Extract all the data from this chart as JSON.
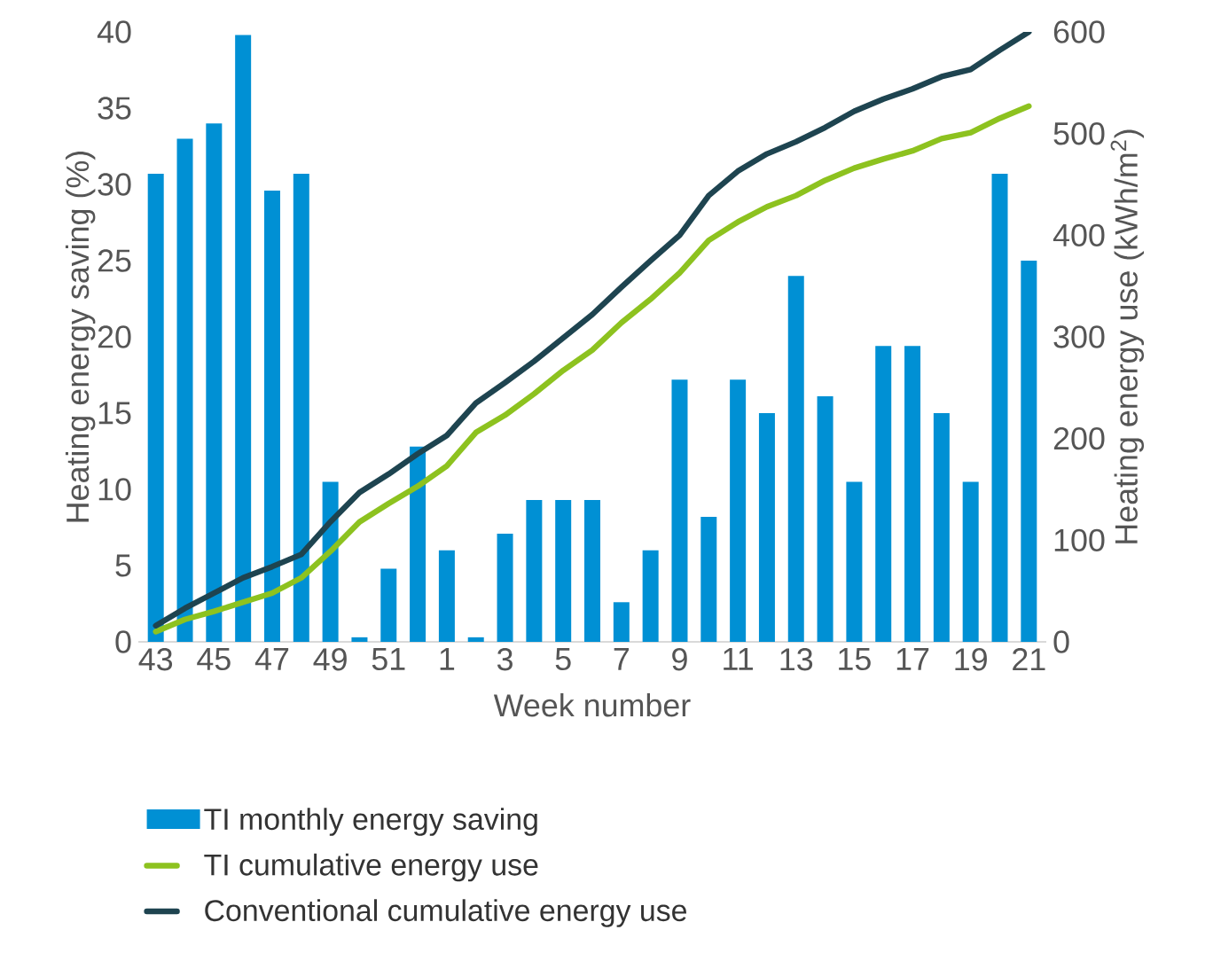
{
  "chart_data": {
    "type": "bar",
    "xlabel": "Week number",
    "ylabel": "Heating energy saving (%)",
    "y2label": "Heating energy use (kWh/m$^{2}$)",
    "categories": [
      "43",
      null,
      "45",
      null,
      "47",
      null,
      "49",
      null,
      "51",
      null,
      "1",
      null,
      "3",
      null,
      "5",
      null,
      "7",
      null,
      "9",
      null,
      "11",
      null,
      "13",
      null,
      "15",
      null,
      "17",
      null,
      "19",
      null,
      "21"
    ],
    "ylim": [
      0,
      40
    ],
    "yticks": [
      0,
      5,
      10,
      15,
      20,
      25,
      30,
      35,
      40
    ],
    "y2lim": [
      0,
      600
    ],
    "y2ticks": [
      0,
      100,
      200,
      300,
      400,
      500,
      600
    ],
    "legend": "bottom",
    "grid": false,
    "series": [
      {
        "name": "TI monthly energy saving",
        "color": "#0090d4",
        "values": [
          30.7,
          33,
          34,
          39.8,
          29.6,
          30.7,
          10.5,
          0.3,
          4.8,
          12.8,
          6,
          0.3,
          7.1,
          9.3,
          9.3,
          9.3,
          2.6,
          6,
          17.2,
          8.2,
          17.2,
          15,
          24,
          16.1,
          10.5,
          19.4,
          19.4,
          15,
          10.5,
          30.7,
          25
        ]
      },
      {
        "name": "TI cumulative energy use",
        "type": "line",
        "axis": "y2",
        "color": "#8dc21f",
        "values": [
          10,
          22,
          30,
          39,
          48,
          63,
          89,
          118,
          136,
          153,
          173,
          206,
          223,
          244,
          267,
          287,
          314,
          337,
          363,
          395,
          413,
          428,
          439,
          454,
          466,
          475,
          483,
          495,
          501,
          515,
          527
        ]
      },
      {
        "name": "Conventional cumulative energy use",
        "type": "line",
        "axis": "y2",
        "color": "#1e4450",
        "values": [
          16,
          33,
          48,
          63,
          74,
          86,
          118,
          147,
          165,
          185,
          203,
          235,
          255,
          276,
          299,
          322,
          349,
          375,
          400,
          439,
          463,
          480,
          492,
          506,
          522,
          534,
          544,
          556,
          563,
          582,
          600
        ]
      }
    ]
  }
}
